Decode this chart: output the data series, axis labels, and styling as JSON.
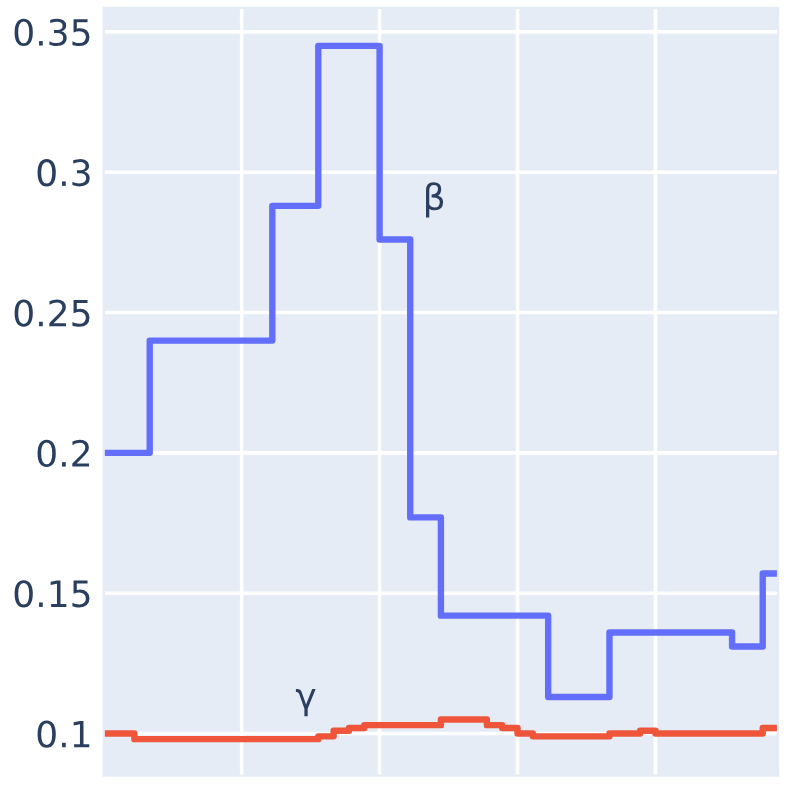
{
  "chart_data": {
    "type": "step",
    "categories": [
      null,
      null,
      null,
      null,
      null,
      null,
      null,
      null,
      null,
      null,
      null,
      null,
      null,
      null,
      null,
      null,
      null,
      null,
      null,
      null,
      null,
      null,
      null,
      null,
      null,
      null,
      null,
      null,
      null,
      null,
      null,
      null,
      null,
      null,
      null,
      null,
      null,
      null,
      null,
      null,
      null,
      null,
      null,
      null,
      null
    ],
    "series": [
      {
        "color": "#636efa",
        "values": [
          0.2,
          0.2,
          0.2,
          0.24,
          0.24,
          0.24,
          0.24,
          0.24,
          0.24,
          0.24,
          0.24,
          0.288,
          0.288,
          0.288,
          0.345,
          0.345,
          0.345,
          0.345,
          0.276,
          0.276,
          0.177,
          0.177,
          0.142,
          0.142,
          0.142,
          0.142,
          0.142,
          0.142,
          0.142,
          0.113,
          0.113,
          0.113,
          0.113,
          0.136,
          0.136,
          0.136,
          0.136,
          0.136,
          0.136,
          0.136,
          0.136,
          0.131,
          0.131,
          0.157,
          0.157
        ]
      },
      {
        "color": "#ef553b",
        "values": [
          0.1,
          0.1,
          0.098,
          0.098,
          0.098,
          0.098,
          0.098,
          0.098,
          0.098,
          0.098,
          0.098,
          0.098,
          0.098,
          0.098,
          0.099,
          0.101,
          0.102,
          0.103,
          0.103,
          0.103,
          0.103,
          0.103,
          0.105,
          0.105,
          0.105,
          0.103,
          0.102,
          0.1,
          0.099,
          0.099,
          0.099,
          0.099,
          0.099,
          0.1,
          0.1,
          0.101,
          0.1,
          0.1,
          0.1,
          0.1,
          0.1,
          0.1,
          0.1,
          0.102,
          0.102
        ]
      }
    ],
    "annotations": [
      "β",
      "γ"
    ],
    "ylim": [
      0.085,
      0.3585
    ],
    "yticks": [
      0.1,
      0.15,
      0.2,
      0.25,
      0.3,
      0.35
    ],
    "tick_labels": "y",
    "grid": true,
    "line_style": "solid"
  }
}
